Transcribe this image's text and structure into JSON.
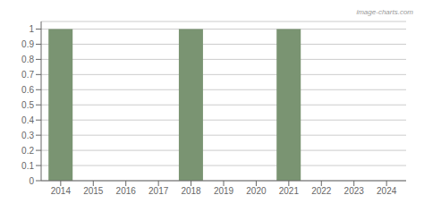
{
  "chart_data": {
    "type": "bar",
    "x": [
      2014,
      2018,
      2021
    ],
    "values": [
      1,
      1,
      1
    ],
    "color": "#7a9472",
    "xlim": [
      2013.4,
      2024.6
    ],
    "xticks": [
      2014,
      2015,
      2016,
      2017,
      2018,
      2019,
      2020,
      2021,
      2022,
      2023,
      2024
    ],
    "ylim": [
      0,
      1.05
    ],
    "yticks": [
      0,
      0.1,
      0.2,
      0.3,
      0.4,
      0.5,
      0.6,
      0.7,
      0.8,
      0.9,
      1
    ],
    "grid": true,
    "annotations": [
      "image-charts.com"
    ]
  }
}
